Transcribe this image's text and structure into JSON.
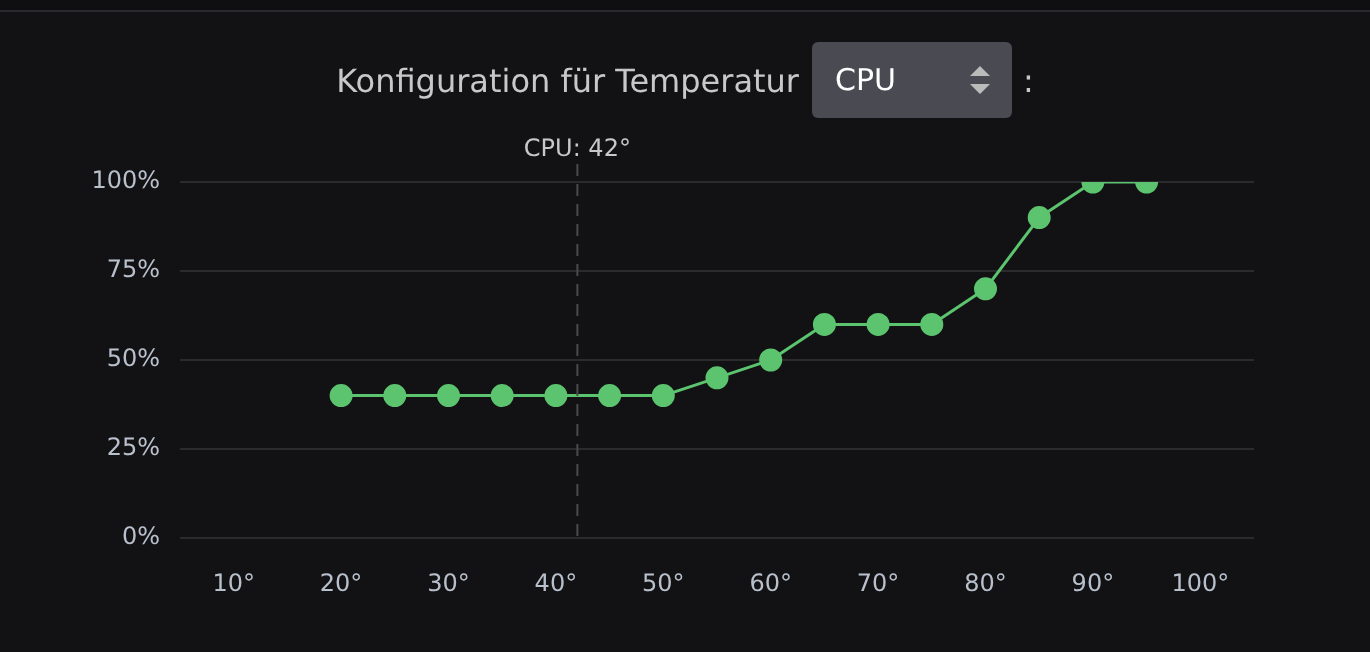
{
  "chart_data": {
    "type": "line",
    "title": "Konfiguration für Temperatur",
    "annotations": [
      "CPU",
      ":"
    ],
    "x": [
      20,
      25,
      30,
      35,
      40,
      45,
      50,
      55,
      60,
      65,
      70,
      75,
      80,
      85,
      90,
      95
    ],
    "series": [
      {
        "color": "#5cc46f",
        "values": [
          40,
          40,
          40,
          40,
          40,
          40,
          40,
          45,
          50,
          60,
          60,
          60,
          70,
          90,
          100,
          100
        ]
      }
    ],
    "xlim": [
      5,
      105
    ],
    "xticks": [
      {
        "value": 10,
        "label": "10°"
      },
      {
        "value": 20,
        "label": "20°"
      },
      {
        "value": 30,
        "label": "30°"
      },
      {
        "value": 40,
        "label": "40°"
      },
      {
        "value": 50,
        "label": "50°"
      },
      {
        "value": 60,
        "label": "60°"
      },
      {
        "value": 70,
        "label": "70°"
      },
      {
        "value": 80,
        "label": "80°"
      },
      {
        "value": 90,
        "label": "90°"
      },
      {
        "value": 100,
        "label": "100°"
      }
    ],
    "ylim": [
      0,
      100
    ],
    "yticks": [
      {
        "value": 0,
        "label": "0%"
      },
      {
        "value": 25,
        "label": "25%"
      },
      {
        "value": 50,
        "label": "50%"
      },
      {
        "value": 75,
        "label": "75%"
      },
      {
        "value": 100,
        "label": "100%"
      }
    ],
    "ref_lines": [
      {
        "axis": "x",
        "value": 42,
        "label": "CPU: 42°",
        "line_style": "dashed"
      }
    ],
    "grid": "y",
    "legend": false,
    "marker": "circle",
    "line_style": "solid"
  }
}
